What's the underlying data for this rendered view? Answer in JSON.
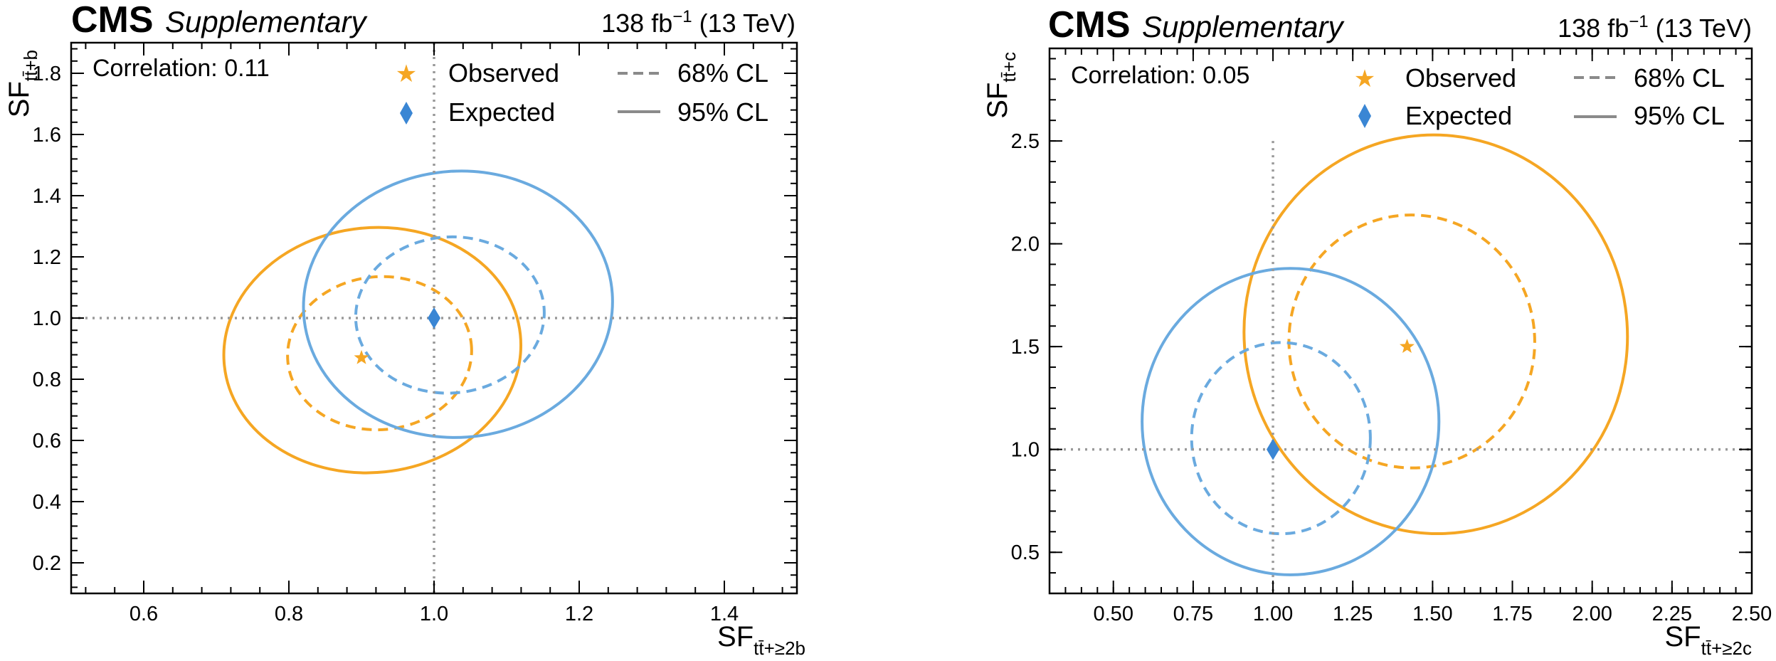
{
  "chart_data": [
    {
      "type": "scatter",
      "experiment": "CMS",
      "tag": "Supplementary",
      "lumi": "138 fb",
      "lumi_exp": "−1",
      "energy": " (13 TeV)",
      "correlation": "Correlation: 0.11",
      "xlabel": "SF",
      "xlabel_sub": "tt̄+≥2b",
      "ylabel": "SF",
      "ylabel_sub": "tt̄+b",
      "xlim": [
        0.5,
        1.5
      ],
      "ylim": [
        0.1,
        1.9
      ],
      "xticks": [
        0.6,
        0.8,
        1.0,
        1.2,
        1.4
      ],
      "xtick_labels": [
        "0.6",
        "0.8",
        "1.0",
        "1.2",
        "1.4"
      ],
      "yticks": [
        0.2,
        0.4,
        0.6,
        0.8,
        1.0,
        1.2,
        1.4,
        1.6,
        1.8
      ],
      "ytick_labels": [
        "0.2",
        "0.4",
        "0.6",
        "0.8",
        "1.0",
        "1.2",
        "1.4",
        "1.6",
        "1.8"
      ],
      "guide_x": 1.0,
      "guide_y": 1.0,
      "observed": {
        "x": 0.9,
        "y": 0.87
      },
      "expected": {
        "x": 1.0,
        "y": 1.0
      },
      "contours": [
        {
          "name": "Observed 95% CL",
          "color": "#f5a623",
          "dash": false,
          "cx": 0.915,
          "cy": 0.895,
          "rx": 0.205,
          "ry": 0.4,
          "tilt": 6
        },
        {
          "name": "Observed 68% CL",
          "color": "#f5a623",
          "dash": true,
          "cx": 0.925,
          "cy": 0.885,
          "rx": 0.127,
          "ry": 0.25,
          "tilt": 5
        },
        {
          "name": "Expected 95% CL",
          "color": "#6aaadf",
          "dash": false,
          "cx": 1.033,
          "cy": 1.045,
          "rx": 0.213,
          "ry": 0.435,
          "tilt": 4
        },
        {
          "name": "Expected 68% CL",
          "color": "#6aaadf",
          "dash": true,
          "cx": 1.022,
          "cy": 1.01,
          "rx": 0.13,
          "ry": 0.255,
          "tilt": 4
        }
      ],
      "legend": {
        "observed": "Observed",
        "expected": "Expected",
        "cl68": "68% CL",
        "cl95": "95% CL"
      }
    },
    {
      "type": "scatter",
      "experiment": "CMS",
      "tag": "Supplementary",
      "lumi": "138 fb",
      "lumi_exp": "−1",
      "energy": " (13 TeV)",
      "correlation": "Correlation: 0.05",
      "xlabel": "SF",
      "xlabel_sub": "tt̄+≥2c",
      "ylabel": "SF",
      "ylabel_sub": "tt̄+c",
      "xlim": [
        0.3,
        2.5
      ],
      "ylim": [
        0.3,
        2.95
      ],
      "xticks": [
        0.5,
        0.75,
        1.0,
        1.25,
        1.5,
        1.75,
        2.0,
        2.25,
        2.5
      ],
      "xtick_labels": [
        "0.50",
        "0.75",
        "1.00",
        "1.25",
        "1.50",
        "1.75",
        "2.00",
        "2.25",
        "2.50"
      ],
      "yticks": [
        0.5,
        1.0,
        1.5,
        2.0,
        2.5
      ],
      "ytick_labels": [
        "0.5",
        "1.0",
        "1.5",
        "2.0",
        "2.5"
      ],
      "guide_x": 1.0,
      "guide_y": 1.0,
      "guide_x_top": 2.5,
      "observed": {
        "x": 1.42,
        "y": 1.5
      },
      "expected": {
        "x": 1.0,
        "y": 1.0
      },
      "contours": [
        {
          "name": "Observed 95% CL",
          "color": "#f5a623",
          "dash": false,
          "cx": 1.51,
          "cy": 1.56,
          "rx": 0.6,
          "ry": 0.97,
          "tilt": 8
        },
        {
          "name": "Observed 68% CL",
          "color": "#f5a623",
          "dash": true,
          "cx": 1.435,
          "cy": 1.525,
          "rx": 0.385,
          "ry": 0.615,
          "tilt": 4
        },
        {
          "name": "Expected 95% CL",
          "color": "#6aaadf",
          "dash": false,
          "cx": 1.055,
          "cy": 1.135,
          "rx": 0.465,
          "ry": 0.745,
          "tilt": 0
        },
        {
          "name": "Expected 68% CL",
          "color": "#6aaadf",
          "dash": true,
          "cx": 1.025,
          "cy": 1.055,
          "rx": 0.28,
          "ry": 0.465,
          "tilt": 0
        }
      ],
      "legend": {
        "observed": "Observed",
        "expected": "Expected",
        "cl68": "68% CL",
        "cl95": "95% CL"
      }
    }
  ]
}
